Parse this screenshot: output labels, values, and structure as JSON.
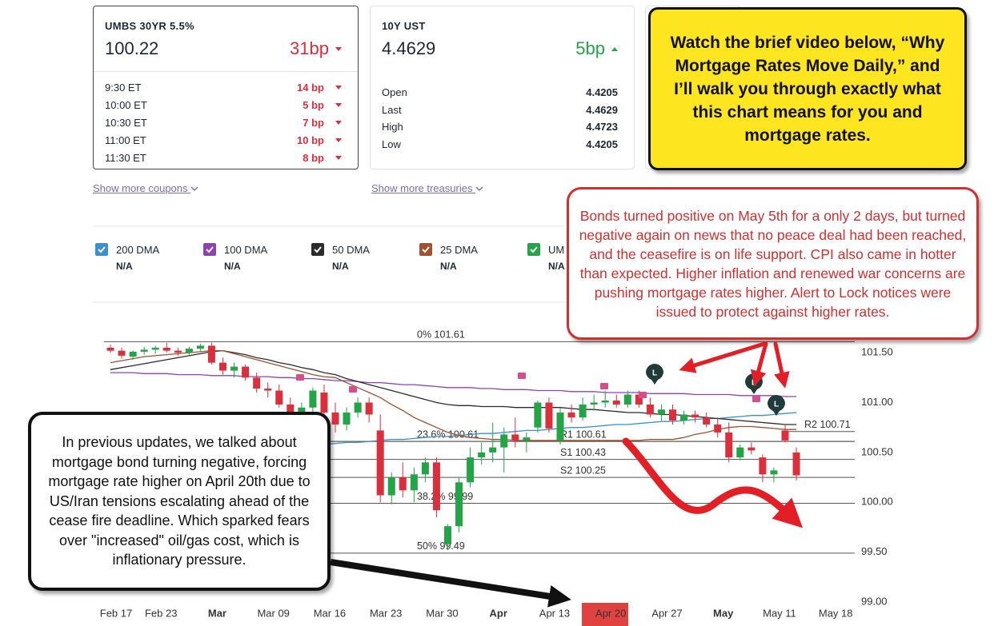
{
  "cards": [
    {
      "title": "UMBS 30YR 5.5%",
      "price": "100.22",
      "change": "31bp",
      "rows": [
        [
          "9:30 ET",
          "14 bp"
        ],
        [
          "10:00 ET",
          "5 bp"
        ],
        [
          "10:30 ET",
          "7 bp"
        ],
        [
          "11:00 ET",
          "10 bp"
        ],
        [
          "11:30 ET",
          "8 bp"
        ]
      ]
    },
    {
      "title": "10Y UST",
      "price": "4.4629",
      "change": "5bp",
      "rows": [
        [
          "Open",
          "4.4205"
        ],
        [
          "Last",
          "4.4629"
        ],
        [
          "High",
          "4.4723"
        ],
        [
          "Low",
          "4.4205"
        ]
      ]
    }
  ],
  "links": [
    "Show more coupons",
    "Show more treasuries"
  ],
  "callouts": {
    "video": "Watch the brief video below, “Why Mortgage Rates Move Daily,” and I’ll walk you through exactly what this chart means for you and mortgage rates.",
    "bonds": "Bonds turned positive on May 5th for a only 2 days, but turned negative again on news that no peace deal had been reached, and the ceasefire is on life support. CPI also came in hotter than expected. Higher inflation and renewed war concerns are pushing mortgage rates higher. Alert to Lock notices were issued to protect against higher rates.",
    "previous": "In previous updates, we talked about mortgage bond turning negative, forcing mortgage rate higher on April 20th due to US/Iran tensions escalating ahead of the cease fire deadline. Which sparked fears over \"increased\" oil/gas cost, which is inflationary pressure."
  },
  "chart_data": {
    "type": "candlestick",
    "ohlc_name": "UM",
    "legend_values": [
      "N/A",
      "N/A",
      "N/A",
      "N/A",
      "N/A"
    ],
    "up_color": "#22a447",
    "down_color": "#dc2f3c",
    "categories": [
      "Feb 17",
      null,
      null,
      null,
      "Feb 23",
      null,
      null,
      null,
      null,
      "Mar",
      null,
      null,
      null,
      null,
      "Mar 09",
      null,
      null,
      null,
      null,
      "Mar 16",
      null,
      null,
      null,
      null,
      "Mar 23",
      null,
      null,
      null,
      null,
      "Mar 30",
      null,
      null,
      null,
      null,
      "Apr",
      null,
      null,
      null,
      null,
      "Apr 13",
      null,
      null,
      null,
      null,
      "Apr 20",
      null,
      null,
      null,
      null,
      "Apr 27",
      null,
      null,
      null,
      null,
      "May",
      null,
      null,
      null,
      null,
      "May 11",
      null,
      null,
      null,
      null,
      "May 18"
    ],
    "ohlc": [
      [
        101.55,
        101.58,
        101.5,
        101.52
      ],
      [
        101.52,
        101.55,
        101.44,
        101.47
      ],
      [
        101.46,
        101.52,
        101.43,
        101.51
      ],
      [
        101.51,
        101.56,
        101.48,
        101.53
      ],
      [
        101.53,
        101.57,
        101.49,
        101.55
      ],
      [
        101.55,
        101.6,
        101.5,
        101.52
      ],
      [
        101.52,
        101.55,
        101.47,
        101.5
      ],
      [
        101.5,
        101.56,
        101.48,
        101.54
      ],
      [
        101.54,
        101.59,
        101.51,
        101.57
      ],
      [
        101.57,
        101.6,
        101.38,
        101.4
      ],
      [
        101.4,
        101.45,
        101.28,
        101.32
      ],
      [
        101.32,
        101.4,
        101.25,
        101.36
      ],
      [
        101.36,
        101.38,
        101.22,
        101.25
      ],
      [
        101.25,
        101.3,
        101.1,
        101.14
      ],
      [
        101.14,
        101.2,
        101.05,
        101.12
      ],
      [
        101.12,
        101.18,
        100.95,
        100.98
      ],
      [
        100.98,
        101.05,
        100.78,
        100.82
      ],
      [
        100.82,
        101.0,
        100.75,
        100.95
      ],
      [
        100.95,
        101.15,
        100.9,
        101.12
      ],
      [
        101.1,
        101.18,
        100.85,
        100.9
      ],
      [
        100.9,
        101.0,
        100.7,
        100.78
      ],
      [
        100.78,
        100.95,
        100.72,
        100.9
      ],
      [
        100.9,
        101.05,
        100.85,
        101.0
      ],
      [
        101.0,
        101.05,
        100.8,
        100.88
      ],
      [
        100.72,
        100.88,
        100.0,
        100.07
      ],
      [
        100.07,
        100.3,
        99.98,
        100.25
      ],
      [
        100.25,
        100.4,
        100.05,
        100.12
      ],
      [
        100.12,
        100.35,
        100.0,
        100.28
      ],
      [
        100.28,
        100.45,
        100.2,
        100.4
      ],
      [
        100.4,
        100.45,
        99.85,
        99.92
      ],
      [
        99.58,
        99.78,
        99.52,
        99.76
      ],
      [
        99.76,
        100.25,
        99.7,
        100.2
      ],
      [
        100.2,
        100.55,
        100.15,
        100.45
      ],
      [
        100.45,
        100.6,
        100.38,
        100.5
      ],
      [
        100.5,
        100.8,
        100.4,
        100.55
      ],
      [
        100.55,
        100.75,
        100.3,
        100.68
      ],
      [
        100.68,
        100.85,
        100.55,
        100.62
      ],
      [
        100.62,
        100.7,
        100.5,
        100.65
      ],
      [
        100.75,
        101.02,
        100.7,
        101.0
      ],
      [
        101.0,
        101.05,
        100.7,
        100.74
      ],
      [
        100.62,
        100.95,
        100.58,
        100.9
      ],
      [
        100.9,
        100.98,
        100.8,
        100.85
      ],
      [
        100.85,
        101.05,
        100.82,
        100.98
      ],
      [
        100.98,
        101.08,
        100.92,
        101.0
      ],
      [
        101.0,
        101.12,
        100.95,
        101.02
      ],
      [
        101.02,
        101.08,
        100.95,
        100.98
      ],
      [
        100.98,
        101.12,
        100.95,
        101.08
      ],
      [
        101.08,
        101.12,
        100.95,
        100.98
      ],
      [
        100.98,
        101.05,
        100.85,
        100.88
      ],
      [
        100.88,
        100.98,
        100.82,
        100.93
      ],
      [
        100.93,
        100.98,
        100.78,
        100.82
      ],
      [
        100.82,
        100.92,
        100.78,
        100.88
      ],
      [
        100.88,
        100.92,
        100.8,
        100.85
      ],
      [
        100.85,
        100.9,
        100.75,
        100.78
      ],
      [
        100.78,
        100.85,
        100.65,
        100.7
      ],
      [
        100.7,
        100.8,
        100.4,
        100.45
      ],
      [
        100.45,
        100.58,
        100.42,
        100.55
      ],
      [
        100.55,
        100.6,
        100.48,
        100.52
      ],
      [
        100.45,
        100.48,
        100.2,
        100.28
      ],
      [
        100.28,
        100.35,
        100.2,
        100.32
      ],
      [
        100.72,
        100.78,
        100.6,
        100.62
      ],
      [
        100.5,
        100.55,
        100.22,
        100.27
      ],
      null,
      null,
      null
    ],
    "series": [
      {
        "name": "200 DMA",
        "color": "#3a8fd0",
        "values": [
          null,
          null,
          null,
          null,
          null,
          null,
          null,
          null,
          null,
          null,
          null,
          null,
          null,
          null,
          null,
          100.55,
          100.56,
          100.57,
          100.57,
          100.58,
          100.59,
          100.6,
          100.6,
          100.61,
          100.62,
          100.63,
          100.63,
          100.64,
          100.65,
          100.66,
          100.66,
          100.67,
          100.68,
          100.69,
          100.69,
          100.7,
          100.71,
          100.72,
          100.72,
          100.73,
          100.74,
          100.75,
          100.75,
          100.76,
          100.77,
          100.78,
          100.78,
          100.79,
          100.8,
          100.81,
          100.81,
          100.82,
          100.83,
          100.84,
          100.84,
          100.85,
          100.86,
          100.87,
          100.87,
          100.88,
          100.89,
          100.9,
          null,
          null,
          null
        ]
      },
      {
        "name": "100 DMA",
        "color": "#8e44ad",
        "values": [
          101.3,
          101.3,
          101.3,
          101.29,
          101.29,
          101.29,
          101.28,
          101.28,
          101.28,
          101.27,
          101.27,
          101.27,
          101.26,
          101.26,
          101.26,
          101.25,
          101.25,
          101.24,
          101.24,
          101.23,
          101.22,
          101.22,
          101.21,
          101.2,
          101.2,
          101.19,
          101.18,
          101.18,
          101.17,
          101.16,
          101.15,
          101.15,
          101.15,
          101.14,
          101.14,
          101.13,
          101.13,
          101.13,
          101.12,
          101.12,
          101.12,
          101.11,
          101.11,
          101.11,
          101.1,
          101.1,
          101.1,
          101.1,
          101.09,
          101.09,
          101.09,
          101.09,
          101.08,
          101.08,
          101.08,
          101.08,
          101.07,
          101.07,
          101.07,
          101.07,
          101.06,
          101.06,
          null,
          null,
          null
        ]
      },
      {
        "name": "50 DMA",
        "color": "#2b2b2b",
        "values": [
          101.33,
          101.35,
          101.37,
          101.39,
          101.41,
          101.43,
          101.45,
          101.47,
          101.49,
          101.51,
          101.52,
          101.5,
          101.48,
          101.45,
          101.43,
          101.4,
          101.38,
          101.35,
          101.33,
          101.3,
          101.28,
          101.24,
          101.21,
          101.18,
          101.15,
          101.12,
          101.09,
          101.06,
          101.03,
          101.0,
          100.98,
          100.97,
          100.97,
          100.96,
          100.96,
          100.96,
          100.95,
          100.95,
          100.95,
          100.95,
          100.95,
          100.94,
          100.93,
          100.93,
          100.92,
          100.91,
          100.9,
          100.9,
          100.89,
          100.88,
          100.88,
          100.87,
          100.86,
          100.85,
          100.84,
          100.83,
          100.82,
          100.81,
          100.8,
          100.79,
          100.78,
          100.78,
          null,
          null,
          null
        ]
      },
      {
        "name": "25 DMA",
        "color": "#a0522d",
        "values": [
          101.4,
          101.42,
          101.44,
          101.46,
          101.47,
          101.48,
          101.49,
          101.5,
          101.51,
          101.52,
          101.52,
          101.49,
          101.46,
          101.43,
          101.4,
          101.37,
          101.34,
          101.31,
          101.28,
          101.26,
          101.25,
          101.2,
          101.15,
          101.1,
          101.05,
          100.98,
          100.92,
          100.85,
          100.8,
          100.75,
          100.7,
          100.67,
          100.65,
          100.64,
          100.63,
          100.63,
          100.62,
          100.62,
          100.62,
          100.62,
          100.62,
          100.62,
          100.62,
          100.62,
          100.62,
          100.62,
          100.62,
          100.62,
          100.63,
          100.63,
          100.63,
          100.65,
          100.68,
          100.7,
          100.73,
          100.75,
          100.76,
          100.76,
          100.75,
          100.74,
          100.73,
          100.73,
          null,
          null,
          null
        ]
      }
    ],
    "levels": [
      {
        "label": "0% 101.61",
        "value": 101.61
      },
      {
        "label": "23.6% 100.61",
        "value": 100.61
      },
      {
        "label": "38.2% 99.99",
        "value": 99.99
      },
      {
        "label": "50% 99.49",
        "value": 99.49
      },
      {
        "label": "R1 100.61",
        "value": 100.61
      },
      {
        "label": "S1 100.43",
        "value": 100.43
      },
      {
        "label": "S2 100.25",
        "value": 100.25
      },
      {
        "label": "R2 100.71",
        "value": 100.71
      }
    ],
    "markers": [
      "L",
      "L",
      "L"
    ],
    "ylim": [
      98.88,
      101.99
    ],
    "yticks": [
      {
        "value": 101.5,
        "label": "101.50"
      },
      {
        "value": 101,
        "label": "101.00"
      },
      {
        "value": 100.5,
        "label": "100.50"
      },
      {
        "value": 100,
        "label": "100.00"
      },
      {
        "value": 99.5,
        "label": "99.50"
      },
      {
        "value": 99,
        "label": "99.00"
      }
    ],
    "grid": false
  }
}
